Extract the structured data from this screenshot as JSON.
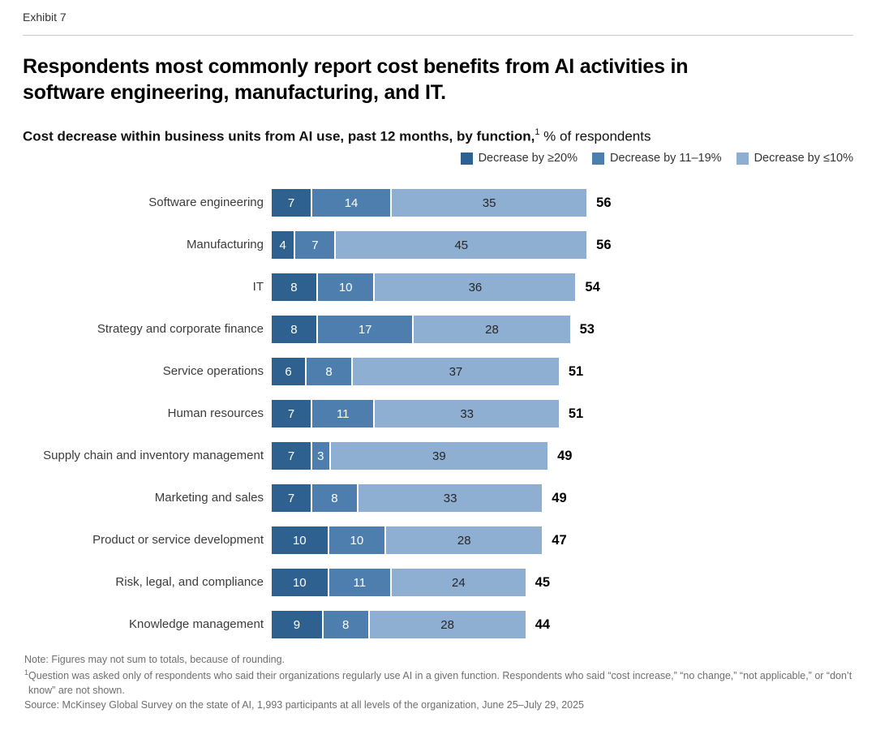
{
  "exhibit_label": "Exhibit 7",
  "title_lines": [
    "Respondents most commonly report cost benefits from AI activities in",
    "software engineering, manufacturing, and IT."
  ],
  "subtitle": {
    "bold": "Cost decrease within business units from AI use, past 12 months, by function,",
    "superscript": "1",
    "regular": " % of respondents"
  },
  "chart_data": {
    "type": "bar",
    "orientation": "horizontal-stacked",
    "title": "Cost decrease within business units from AI use, past 12 months, by function, % of respondents",
    "xlabel": "",
    "ylabel": "",
    "grid": false,
    "legend_position": "top-right",
    "max_total": 56,
    "categories": [
      "Software engineering",
      "Manufacturing",
      "IT",
      "Strategy and corporate finance",
      "Service operations",
      "Human resources",
      "Supply chain and inventory management",
      "Marketing and sales",
      "Product or service development",
      "Risk, legal, and compliance",
      "Knowledge management"
    ],
    "series": [
      {
        "name": "Decrease by ≥20%",
        "color": "#2E618F",
        "label_color": "#FFFFFF",
        "values": [
          7,
          4,
          8,
          8,
          6,
          7,
          7,
          7,
          10,
          10,
          9
        ]
      },
      {
        "name": "Decrease by 11–19%",
        "color": "#4D7EAD",
        "label_color": "#FFFFFF",
        "values": [
          14,
          7,
          10,
          17,
          8,
          11,
          3,
          8,
          10,
          11,
          8
        ]
      },
      {
        "name": "Decrease by ≤10%",
        "color": "#8FAFD2",
        "label_color": "#262626",
        "values": [
          35,
          45,
          36,
          28,
          37,
          33,
          39,
          33,
          28,
          24,
          28
        ]
      }
    ],
    "totals": [
      56,
      56,
      54,
      53,
      51,
      51,
      49,
      49,
      47,
      45,
      44
    ]
  },
  "footnotes": [
    {
      "prefix": "",
      "text": "Note: Figures may not sum to totals, because of rounding."
    },
    {
      "prefix": "1",
      "text": "Question was asked only of respondents who said their organizations regularly use AI in a given function. Respondents who said “cost increase,” “no change,” “not applicable,” or “don’t know” are not shown."
    },
    {
      "prefix": "",
      "text": "Source: McKinsey Global Survey on the state of AI, 1,993 participants at all levels of the organization, June 25–July 29, 2025"
    }
  ]
}
